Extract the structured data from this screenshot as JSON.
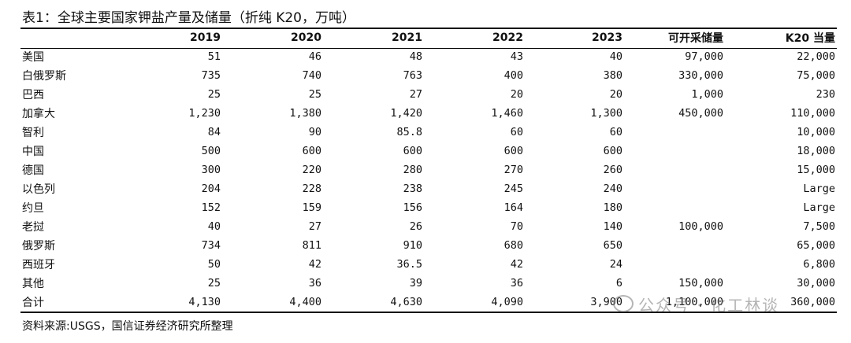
{
  "title": "表1：全球主要国家钾盐产量及储量（折纯 K20，万吨）",
  "headers": [
    "",
    "2019",
    "2020",
    "2021",
    "2022",
    "2023",
    "可开采储量",
    "K20 当量"
  ],
  "rows": [
    [
      "美国",
      "51",
      "46",
      "48",
      "43",
      "40",
      "97,000",
      "22,000"
    ],
    [
      "白俄罗斯",
      "735",
      "740",
      "763",
      "400",
      "380",
      "330,000",
      "75,000"
    ],
    [
      "巴西",
      "25",
      "25",
      "27",
      "20",
      "20",
      "1,000",
      "230"
    ],
    [
      "加拿大",
      "1,230",
      "1,380",
      "1,420",
      "1,460",
      "1,300",
      "450,000",
      "110,000"
    ],
    [
      "智利",
      "84",
      "90",
      "85.8",
      "60",
      "60",
      "",
      "10,000"
    ],
    [
      "中国",
      "500",
      "600",
      "600",
      "600",
      "600",
      "",
      "18,000"
    ],
    [
      "德国",
      "300",
      "220",
      "280",
      "270",
      "260",
      "",
      "15,000"
    ],
    [
      "以色列",
      "204",
      "228",
      "238",
      "245",
      "240",
      "",
      "Large"
    ],
    [
      "约旦",
      "152",
      "159",
      "156",
      "164",
      "180",
      "",
      "Large"
    ],
    [
      "老挝",
      "40",
      "27",
      "26",
      "70",
      "140",
      "100,000",
      "7,500"
    ],
    [
      "俄罗斯",
      "734",
      "811",
      "910",
      "680",
      "650",
      "",
      "65,000"
    ],
    [
      "西班牙",
      "50",
      "42",
      "36.5",
      "42",
      "24",
      "",
      "6,800"
    ],
    [
      "其他",
      "25",
      "36",
      "39",
      "36",
      "6",
      "150,000",
      "30,000"
    ],
    [
      "合计",
      "4,130",
      "4,400",
      "4,630",
      "4,090",
      "3,900",
      "1,100,000",
      "360,000"
    ]
  ],
  "source": "资料来源:USGS，国信证券经济研究所整理",
  "watermark": "公众号 · 化工林谈"
}
